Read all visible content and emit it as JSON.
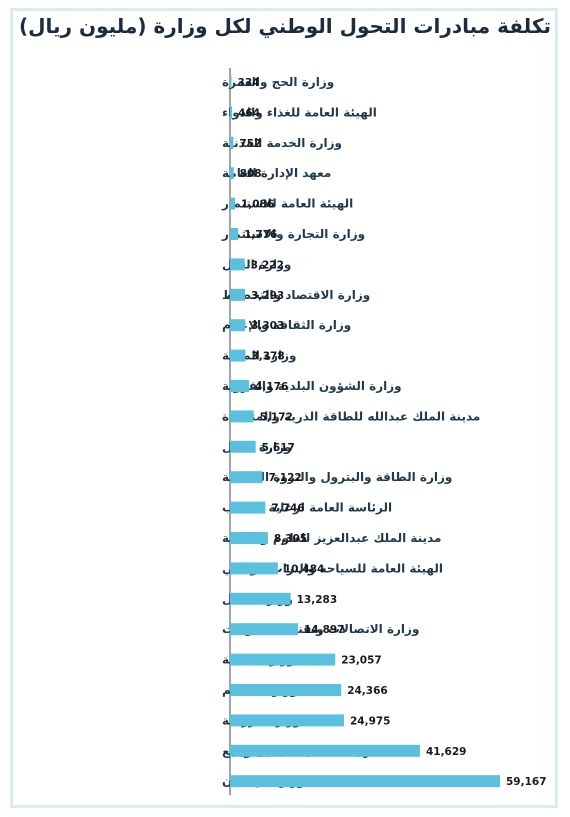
{
  "chart_data": {
    "type": "bar",
    "orientation": "horizontal",
    "title": "تكلفة مبادرات التحول الوطني لكل وزارة (مليون ريال)",
    "bar_color": "#5bc0de",
    "axis_color": "#4a4a4a",
    "grid": false,
    "categories": [
      "وزارة الحج والعمرة",
      "الهيئة العامة للغذاء والدواء",
      "وزارة الخدمة المدنية",
      "معهد الإدارة العامة",
      "الهيئة العامة للاستثمار",
      "وزارة التجارة والاستثمار",
      "وزارة العدل",
      "وزارة الاقتصاد والتخطيط",
      "وزارة الثقافة والإعلام",
      "وزارة المالية",
      "وزارة الشؤون البلدية والقروية",
      "مدينة الملك عبدالله للطاقة الذرية والمتجددة",
      "وزارة النقل",
      "وزارة الطاقة والبترول والثروة المعدنية",
      "الرئاسة العامة لرعاية الشباب",
      "مدينة الملك عبدالعزيز للعلوم والتقنية",
      "الهيئة العامة للسياحة والتراث الوطني",
      "وزارة العمل",
      "وزارة الاتصالات وتقنية المعلومات",
      "وزارة الصحة",
      "وزارة التعليم",
      "وزارة الزراعة",
      "الهيئة الملكية للجبيل وينبع",
      "وزارة الإسكان"
    ],
    "values": [
      334,
      464,
      752,
      808,
      1086,
      1776,
      3222,
      3293,
      3303,
      3378,
      4176,
      5172,
      5617,
      7122,
      7746,
      8305,
      10484,
      13283,
      14897,
      23057,
      24366,
      24975,
      41629,
      59167
    ],
    "value_labels": [
      "334",
      "464",
      "752",
      "808",
      "1,086",
      "1,776",
      "3,222",
      "3,293",
      "3,303",
      "3,378",
      "4,176",
      "5,172",
      "5,617",
      "7,122",
      "7,746",
      "8,305",
      "10,484",
      "13,283",
      "14,897",
      "23,057",
      "24,366",
      "24,975",
      "41,629",
      "59,167"
    ],
    "xlim": [
      0,
      59167
    ]
  }
}
